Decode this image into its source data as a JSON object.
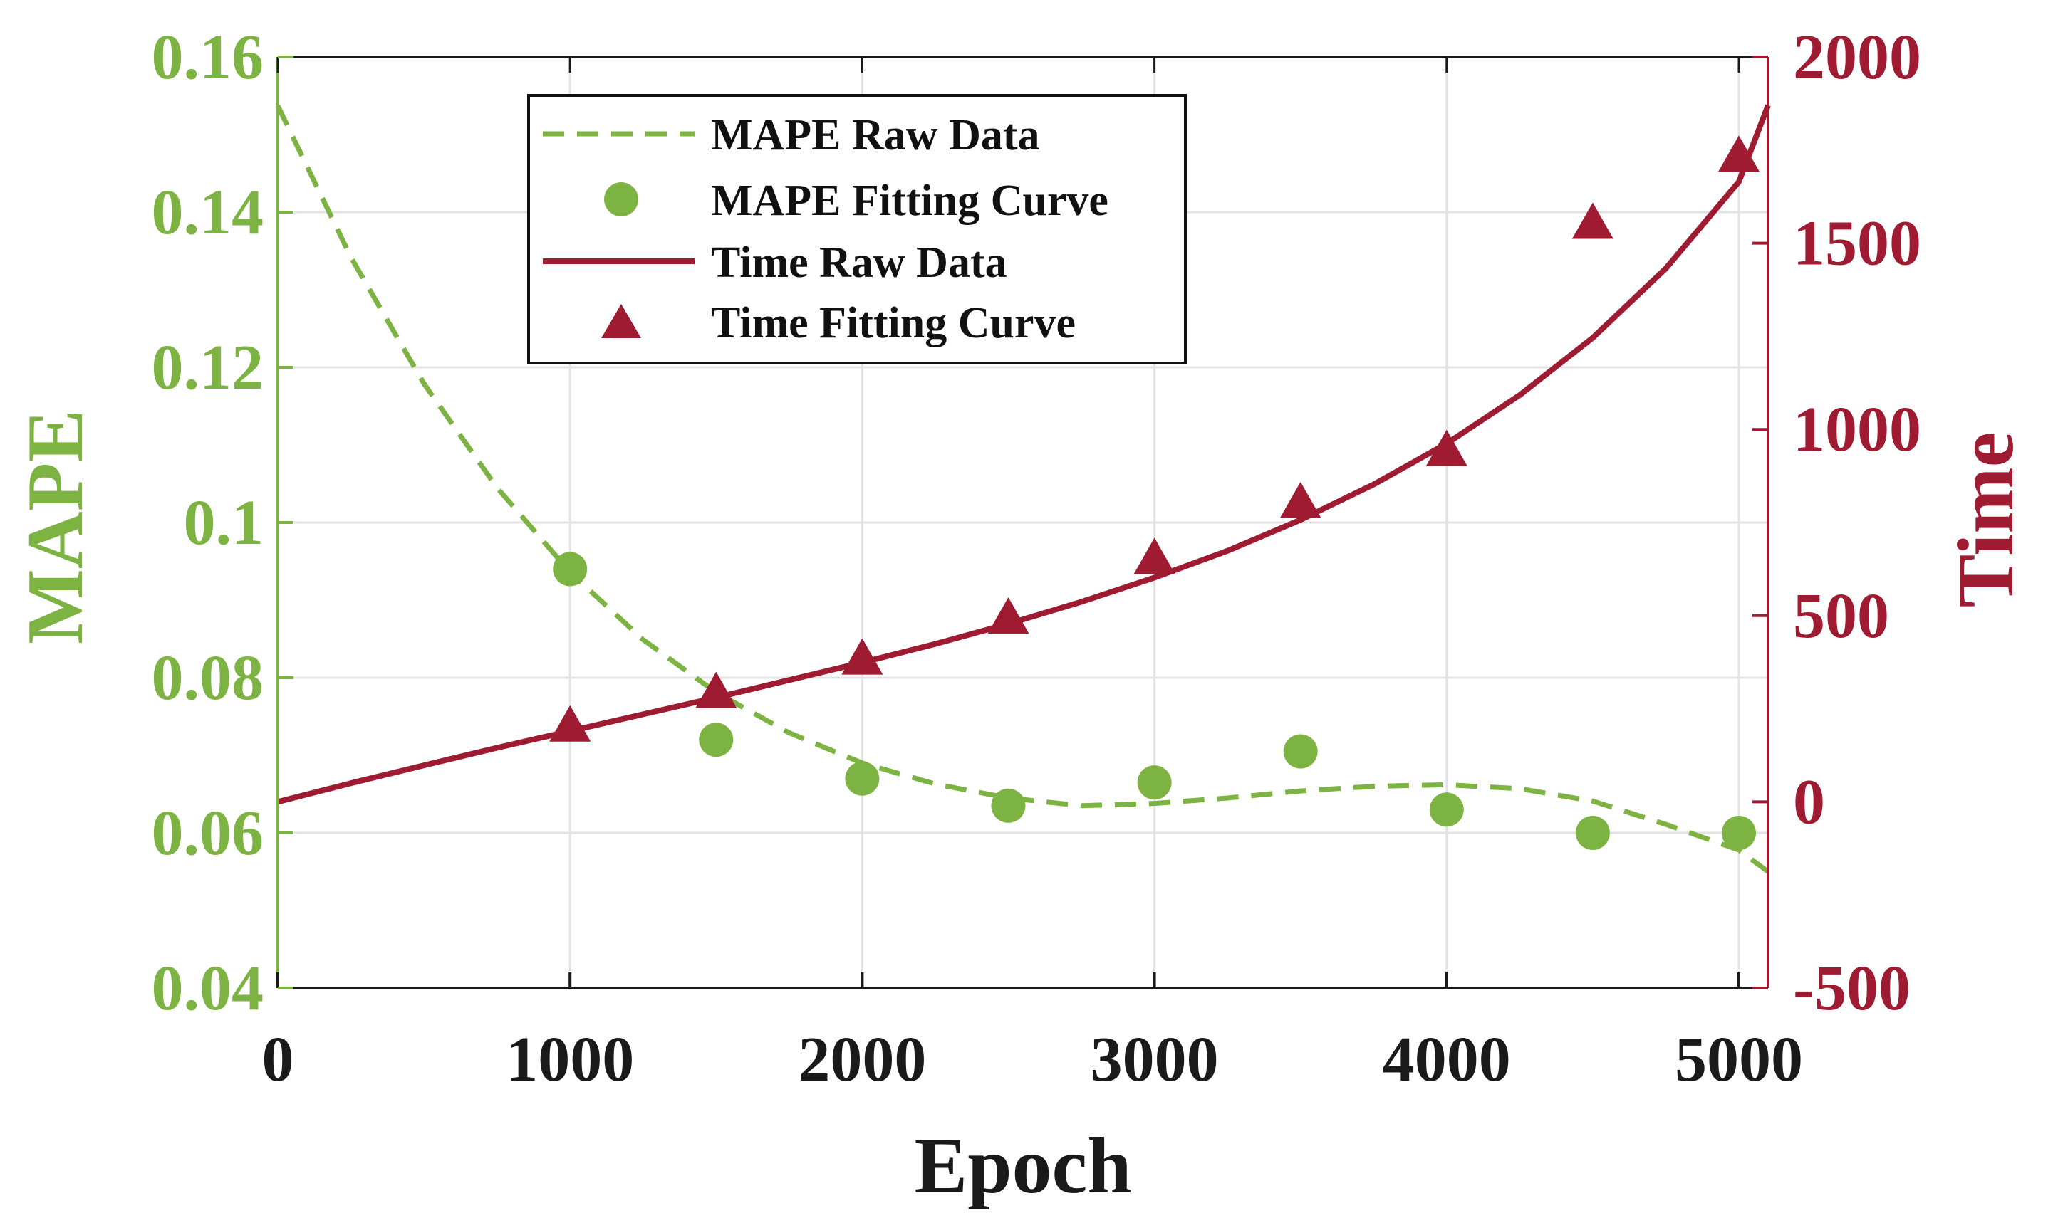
{
  "chart_data": {
    "type": "line",
    "title": "",
    "xlabel": "Epoch",
    "ylabel_left": "MAPE",
    "ylabel_right": "Time",
    "xlim": [
      0,
      5100
    ],
    "ylim_left": [
      0.04,
      0.16
    ],
    "ylim_right": [
      -500,
      2000
    ],
    "xticks": [
      0,
      1000,
      2000,
      3000,
      4000,
      5000
    ],
    "xtick_labels": [
      "0",
      "1000",
      "2000",
      "3000",
      "4000",
      "5000"
    ],
    "yticks_left": [
      0.04,
      0.06,
      0.08,
      0.1,
      0.12,
      0.14,
      0.16
    ],
    "ytick_labels_left": [
      "0.04",
      "0.06",
      "0.08",
      "0.1",
      "0.12",
      "0.14",
      "0.16"
    ],
    "yticks_right": [
      -500,
      0,
      500,
      1000,
      1500,
      2000
    ],
    "ytick_labels_right": [
      "-500",
      "0",
      "500",
      "1000",
      "1500",
      "2000"
    ],
    "grid": true,
    "legend_position": "top-left",
    "colors": {
      "mape": "#7cb342",
      "time": "#9e1b32",
      "axis": "#1a1a1a",
      "grid": "#e3e3e3"
    },
    "series": [
      {
        "name": "MAPE Raw Data",
        "axis": "left",
        "style": "dashed-line",
        "x": [
          0,
          250,
          500,
          750,
          1000,
          1250,
          1500,
          1750,
          2000,
          2250,
          2500,
          2750,
          3000,
          3250,
          3500,
          3750,
          4000,
          4250,
          4500,
          4750,
          5000,
          5100
        ],
        "values": [
          0.1537,
          0.1342,
          0.1179,
          0.1045,
          0.0936,
          0.0849,
          0.0781,
          0.0729,
          0.069,
          0.0663,
          0.0645,
          0.0635,
          0.0638,
          0.0645,
          0.0654,
          0.066,
          0.0662,
          0.0657,
          0.0641,
          0.0611,
          0.0578,
          0.055
        ]
      },
      {
        "name": "MAPE Fitting Curve",
        "axis": "left",
        "style": "circle-marker",
        "x": [
          1000,
          1500,
          2000,
          2500,
          3000,
          3500,
          4000,
          4500,
          5000
        ],
        "values": [
          0.094,
          0.072,
          0.067,
          0.0635,
          0.0665,
          0.0705,
          0.063,
          0.06,
          0.06
        ]
      },
      {
        "name": "Time Raw Data",
        "axis": "right",
        "style": "solid-line",
        "x": [
          0,
          250,
          500,
          750,
          1000,
          1250,
          1500,
          1750,
          2000,
          2250,
          2500,
          2750,
          3000,
          3250,
          3500,
          3750,
          4000,
          4250,
          4500,
          4750,
          5000,
          5100
        ],
        "values": [
          0,
          50,
          98,
          145,
          190,
          235,
          280,
          327,
          374,
          424,
          478,
          537,
          602,
          674,
          757,
          852,
          962,
          1092,
          1246,
          1432,
          1665,
          1870
        ]
      },
      {
        "name": "Time Fitting Curve",
        "axis": "right",
        "style": "triangle-marker",
        "x": [
          1000,
          1500,
          2000,
          2500,
          3000,
          3500,
          4000,
          4500,
          5000
        ],
        "values": [
          200,
          290,
          380,
          490,
          650,
          800,
          940,
          1550,
          1730
        ]
      }
    ]
  }
}
